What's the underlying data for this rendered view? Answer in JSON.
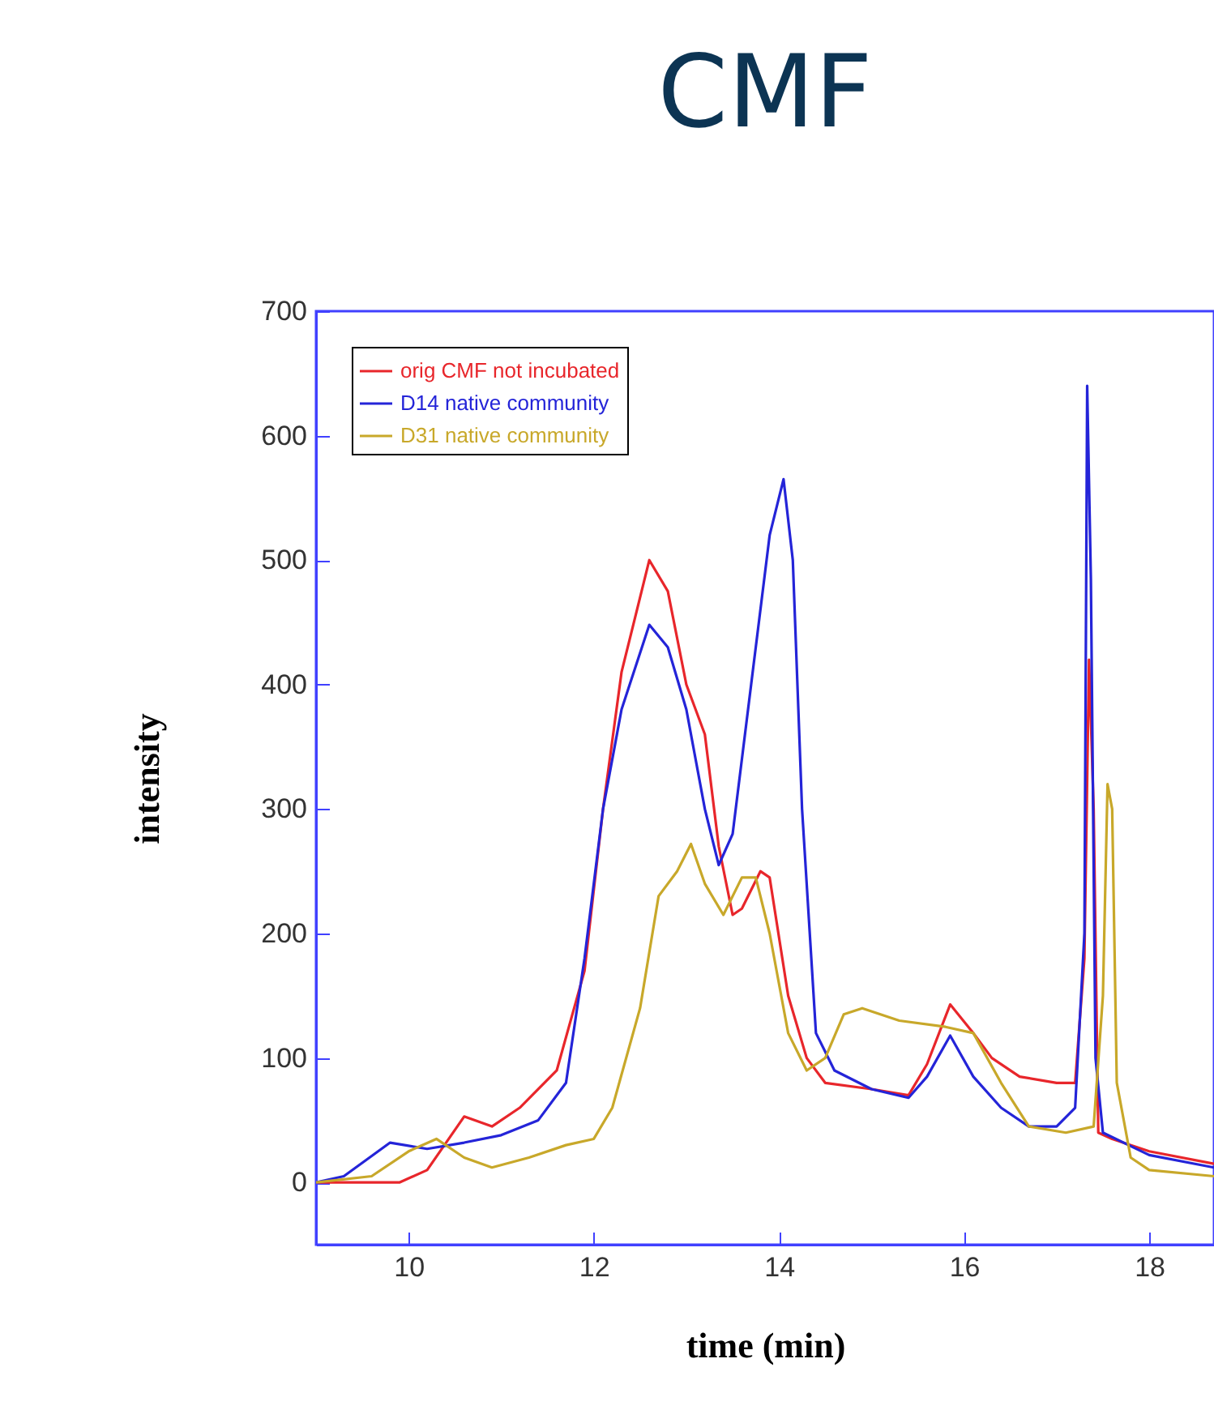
{
  "chart_data": {
    "type": "line",
    "title": "CMF",
    "xlabel": "time  (min)",
    "ylabel": "intensity",
    "xlim": [
      9,
      18.7
    ],
    "ylim": [
      -50,
      700
    ],
    "xticks": [
      10,
      12,
      14,
      16,
      18
    ],
    "yticks": [
      0,
      100,
      200,
      300,
      400,
      500,
      600,
      700
    ],
    "legend": "top left",
    "series": [
      {
        "name": "orig CMF not incubated",
        "color": "#e8262b",
        "x": [
          9.0,
          9.9,
          10.2,
          10.6,
          10.9,
          11.2,
          11.6,
          11.9,
          12.1,
          12.3,
          12.6,
          12.8,
          13.0,
          13.2,
          13.35,
          13.5,
          13.6,
          13.8,
          13.9,
          14.1,
          14.3,
          14.5,
          15.0,
          15.4,
          15.6,
          15.85,
          16.1,
          16.3,
          16.6,
          17.0,
          17.2,
          17.3,
          17.35,
          17.4,
          17.45,
          17.6,
          18.0,
          18.7
        ],
        "values": [
          0,
          0,
          10,
          53,
          45,
          60,
          90,
          170,
          300,
          410,
          500,
          475,
          400,
          360,
          270,
          215,
          220,
          250,
          245,
          150,
          100,
          80,
          75,
          70,
          95,
          143,
          120,
          100,
          85,
          80,
          80,
          180,
          420,
          300,
          40,
          35,
          25,
          15
        ]
      },
      {
        "name": "D14 native community",
        "color": "#2424d8",
        "x": [
          9.0,
          9.3,
          9.8,
          10.2,
          10.6,
          11.0,
          11.4,
          11.7,
          11.9,
          12.1,
          12.3,
          12.6,
          12.8,
          13.0,
          13.2,
          13.35,
          13.5,
          13.7,
          13.9,
          14.05,
          14.15,
          14.25,
          14.4,
          14.6,
          15.0,
          15.4,
          15.6,
          15.85,
          16.1,
          16.4,
          16.7,
          17.0,
          17.2,
          17.3,
          17.33,
          17.37,
          17.42,
          17.5,
          18.0,
          18.7
        ],
        "values": [
          0,
          5,
          32,
          27,
          32,
          38,
          50,
          80,
          180,
          300,
          380,
          448,
          430,
          380,
          300,
          255,
          280,
          400,
          520,
          565,
          500,
          300,
          120,
          90,
          75,
          68,
          85,
          118,
          85,
          60,
          45,
          45,
          60,
          200,
          640,
          485,
          100,
          40,
          22,
          12
        ]
      },
      {
        "name": "D31 native community",
        "color": "#c8a82a",
        "x": [
          9.0,
          9.6,
          10.0,
          10.3,
          10.6,
          10.9,
          11.3,
          11.7,
          12.0,
          12.2,
          12.5,
          12.7,
          12.9,
          13.05,
          13.2,
          13.4,
          13.6,
          13.75,
          13.9,
          14.1,
          14.3,
          14.5,
          14.7,
          14.9,
          15.3,
          15.8,
          16.1,
          16.4,
          16.7,
          17.1,
          17.4,
          17.5,
          17.55,
          17.6,
          17.65,
          17.8,
          18.0,
          18.7
        ],
        "values": [
          0,
          5,
          25,
          35,
          20,
          12,
          20,
          30,
          35,
          60,
          140,
          230,
          250,
          272,
          240,
          215,
          245,
          245,
          200,
          120,
          90,
          100,
          135,
          140,
          130,
          125,
          120,
          80,
          45,
          40,
          45,
          150,
          320,
          300,
          80,
          20,
          10,
          5
        ]
      }
    ]
  }
}
